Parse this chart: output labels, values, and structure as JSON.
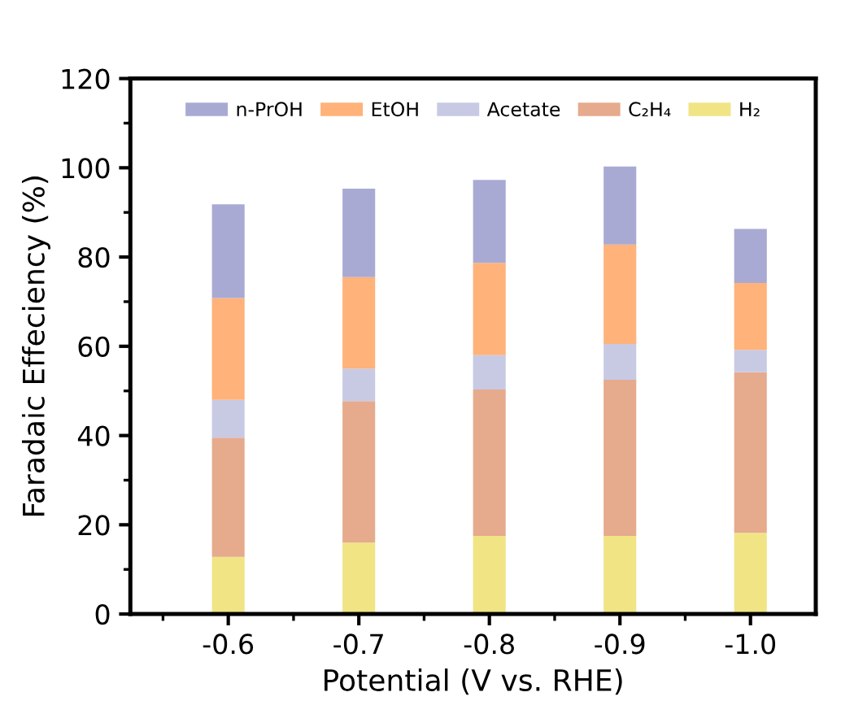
{
  "chart_data": {
    "type": "bar",
    "stacked": true,
    "xlabel": "Potential (V vs. RHE)",
    "ylabel": "Faradaic Effeciency (%)",
    "categories": [
      "-0.6",
      "-0.7",
      "-0.8",
      "-0.9",
      "-1.0"
    ],
    "series": [
      {
        "name": "H₂",
        "color": "#f0e485",
        "values": [
          12.8,
          16,
          17.5,
          17.5,
          18.2
        ]
      },
      {
        "name": "C₂H₄",
        "color": "#e6aa8d",
        "values": [
          26.7,
          31.7,
          32.8,
          35,
          36
        ]
      },
      {
        "name": "Acetate",
        "color": "#c8cae4",
        "values": [
          8.5,
          7.3,
          7.7,
          8,
          5
        ]
      },
      {
        "name": "EtOH",
        "color": "#ffb27a",
        "values": [
          22.8,
          20.5,
          20.7,
          22.3,
          15
        ]
      },
      {
        "name": "n-PrOH",
        "color": "#a9aad3",
        "values": [
          21,
          19.8,
          18.6,
          17.5,
          12.1
        ]
      }
    ],
    "ylim": [
      0,
      120
    ],
    "yticks": [
      0,
      20,
      40,
      60,
      80,
      100,
      120
    ],
    "grid": false,
    "legend": "top"
  }
}
